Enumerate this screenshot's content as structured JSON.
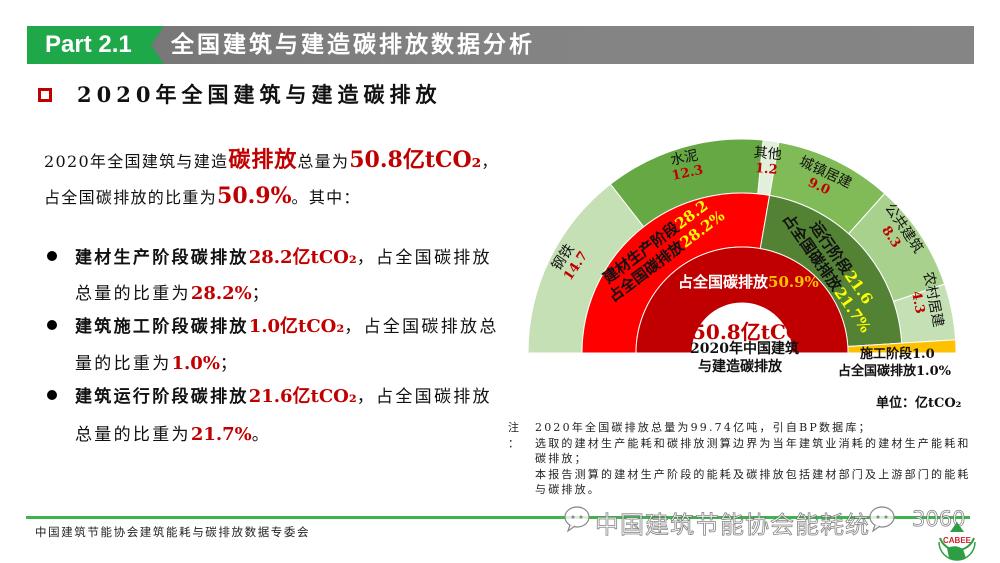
{
  "header": {
    "part": "Part 2.1",
    "title": "全国建筑与建造碳排放数据分析"
  },
  "section_title": "2020年全国建筑与建造碳排放",
  "intro": {
    "line1": {
      "pre": "2020年全国建筑与建造",
      "em1": "碳排放",
      "mid": "总量为",
      "em2": "50.8亿tCO₂",
      "post": "，"
    },
    "line2": {
      "pre": "占全国碳排放的比重为",
      "em": "50.9%",
      "post": "。其中："
    }
  },
  "bullets": [
    {
      "label": "建材生产阶段碳排放",
      "amount": "28.2亿tCO₂",
      "mid1": "，占全国碳排放",
      "mid2": "总量的比重为",
      "share": "28.2%",
      "end": "；"
    },
    {
      "label": "建筑施工阶段碳排放",
      "amount": "1.0亿tCO₂",
      "mid1": "，占全国碳排放总",
      "mid2": "量的比重为",
      "share": "1.0%",
      "end": "；"
    },
    {
      "label": "建筑运行阶段碳排放",
      "amount": "21.6亿tCO₂",
      "mid1": "，占全国碳排放",
      "mid2": "总量的比重为",
      "share": "21.7%",
      "end": "。"
    }
  ],
  "chart_data": {
    "type": "pie",
    "subtype": "semicircle multi-level (sunburst)",
    "title": "2020年中国建筑与建造碳排放",
    "title_lines": [
      "2020年中国建筑",
      "与建造碳排放"
    ],
    "total": 50.8,
    "total_label": "50.8亿tCO₂",
    "unit": "单位：亿tCO₂",
    "inner_ring": [
      {
        "label": "占全国碳排放",
        "value": 50.8,
        "share": "50.9%",
        "color": "#c00000"
      }
    ],
    "middle_ring": [
      {
        "label": "建材生产阶段",
        "value": 28.2,
        "display": "28.2",
        "share_label": "占全国碳排放",
        "share": "28.2%",
        "color": "#ff0000"
      },
      {
        "label": "运行阶段",
        "value": 21.6,
        "display": "21.6",
        "share_label": "占全国碳排放",
        "share": "21.7%",
        "color": "#548235"
      },
      {
        "label": "施工阶段",
        "value": 1.0,
        "display": "1.0",
        "share_label": "占全国碳排放",
        "share": "1.0%",
        "color": "#ffc000",
        "span_outer": true
      }
    ],
    "outer_ring": [
      {
        "label": "钢铁",
        "value": 14.7,
        "display": "14.7",
        "parent": "建材生产阶段",
        "color": "#c5e0b4"
      },
      {
        "label": "水泥",
        "value": 12.3,
        "display": "12.3",
        "parent": "建材生产阶段",
        "color": "#66a844"
      },
      {
        "label": "其他",
        "value": 1.2,
        "display": "1.2",
        "parent": "建材生产阶段",
        "color": "#e2efda"
      },
      {
        "label": "城镇居建",
        "value": 9.0,
        "display": "9.0",
        "parent": "运行阶段",
        "color": "#80bb58"
      },
      {
        "label": "公共建筑",
        "value": 8.3,
        "display": "8.3",
        "parent": "运行阶段",
        "color": "#a9d18e"
      },
      {
        "label": "农村居建",
        "value": 4.3,
        "display": "4.3",
        "parent": "运行阶段",
        "color": "#c5e0b4"
      }
    ]
  },
  "notes": {
    "label": "注",
    "colon": "：",
    "lines": [
      "2020年全国碳排放总量为99.74亿吨，引自BP数据库；",
      "选取的建材生产能耗和碳排放测算边界为当年建筑业消耗的建材生产能耗和碳排放；",
      "本报告测算的建材生产阶段的能耗及碳排放包括建材部门及上游部门的能耗与碳排放。"
    ]
  },
  "footer": {
    "org": "中国建筑节能协会建筑能耗与碳排放数据专委会",
    "watermark": "中国建筑节能协会能耗统",
    "watermark_tail": "3060",
    "logo_text": "CABEE"
  },
  "colors": {
    "brand_green": "#1ea84a",
    "header_gray": "#808080",
    "accent_red": "#c00000",
    "footer_line": "#3db54a"
  }
}
